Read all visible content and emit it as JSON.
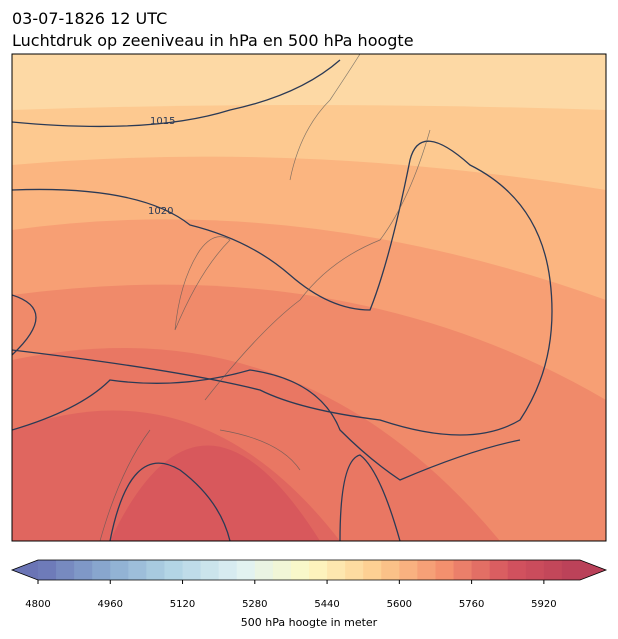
{
  "header": {
    "date": "03-07-1826 12 UTC",
    "title": "Luchtdruk op zeeniveau in hPa en 500 hPa hoogte"
  },
  "contour_labels": [
    "1015",
    "1020"
  ],
  "colorbar": {
    "label": "500 hPa hoogte in meter",
    "lim": [
      4800,
      6000
    ],
    "step": 40,
    "ticks": [
      4800,
      4960,
      5120,
      5280,
      5440,
      5600,
      5760,
      5920
    ],
    "colormap": [
      "#6a74b5",
      "#8aaad0",
      "#b3d5e5",
      "#e0f1f3",
      "#fdf9c4",
      "#fdcd8f",
      "#f4906e",
      "#d3525e",
      "#b94058"
    ]
  }
}
